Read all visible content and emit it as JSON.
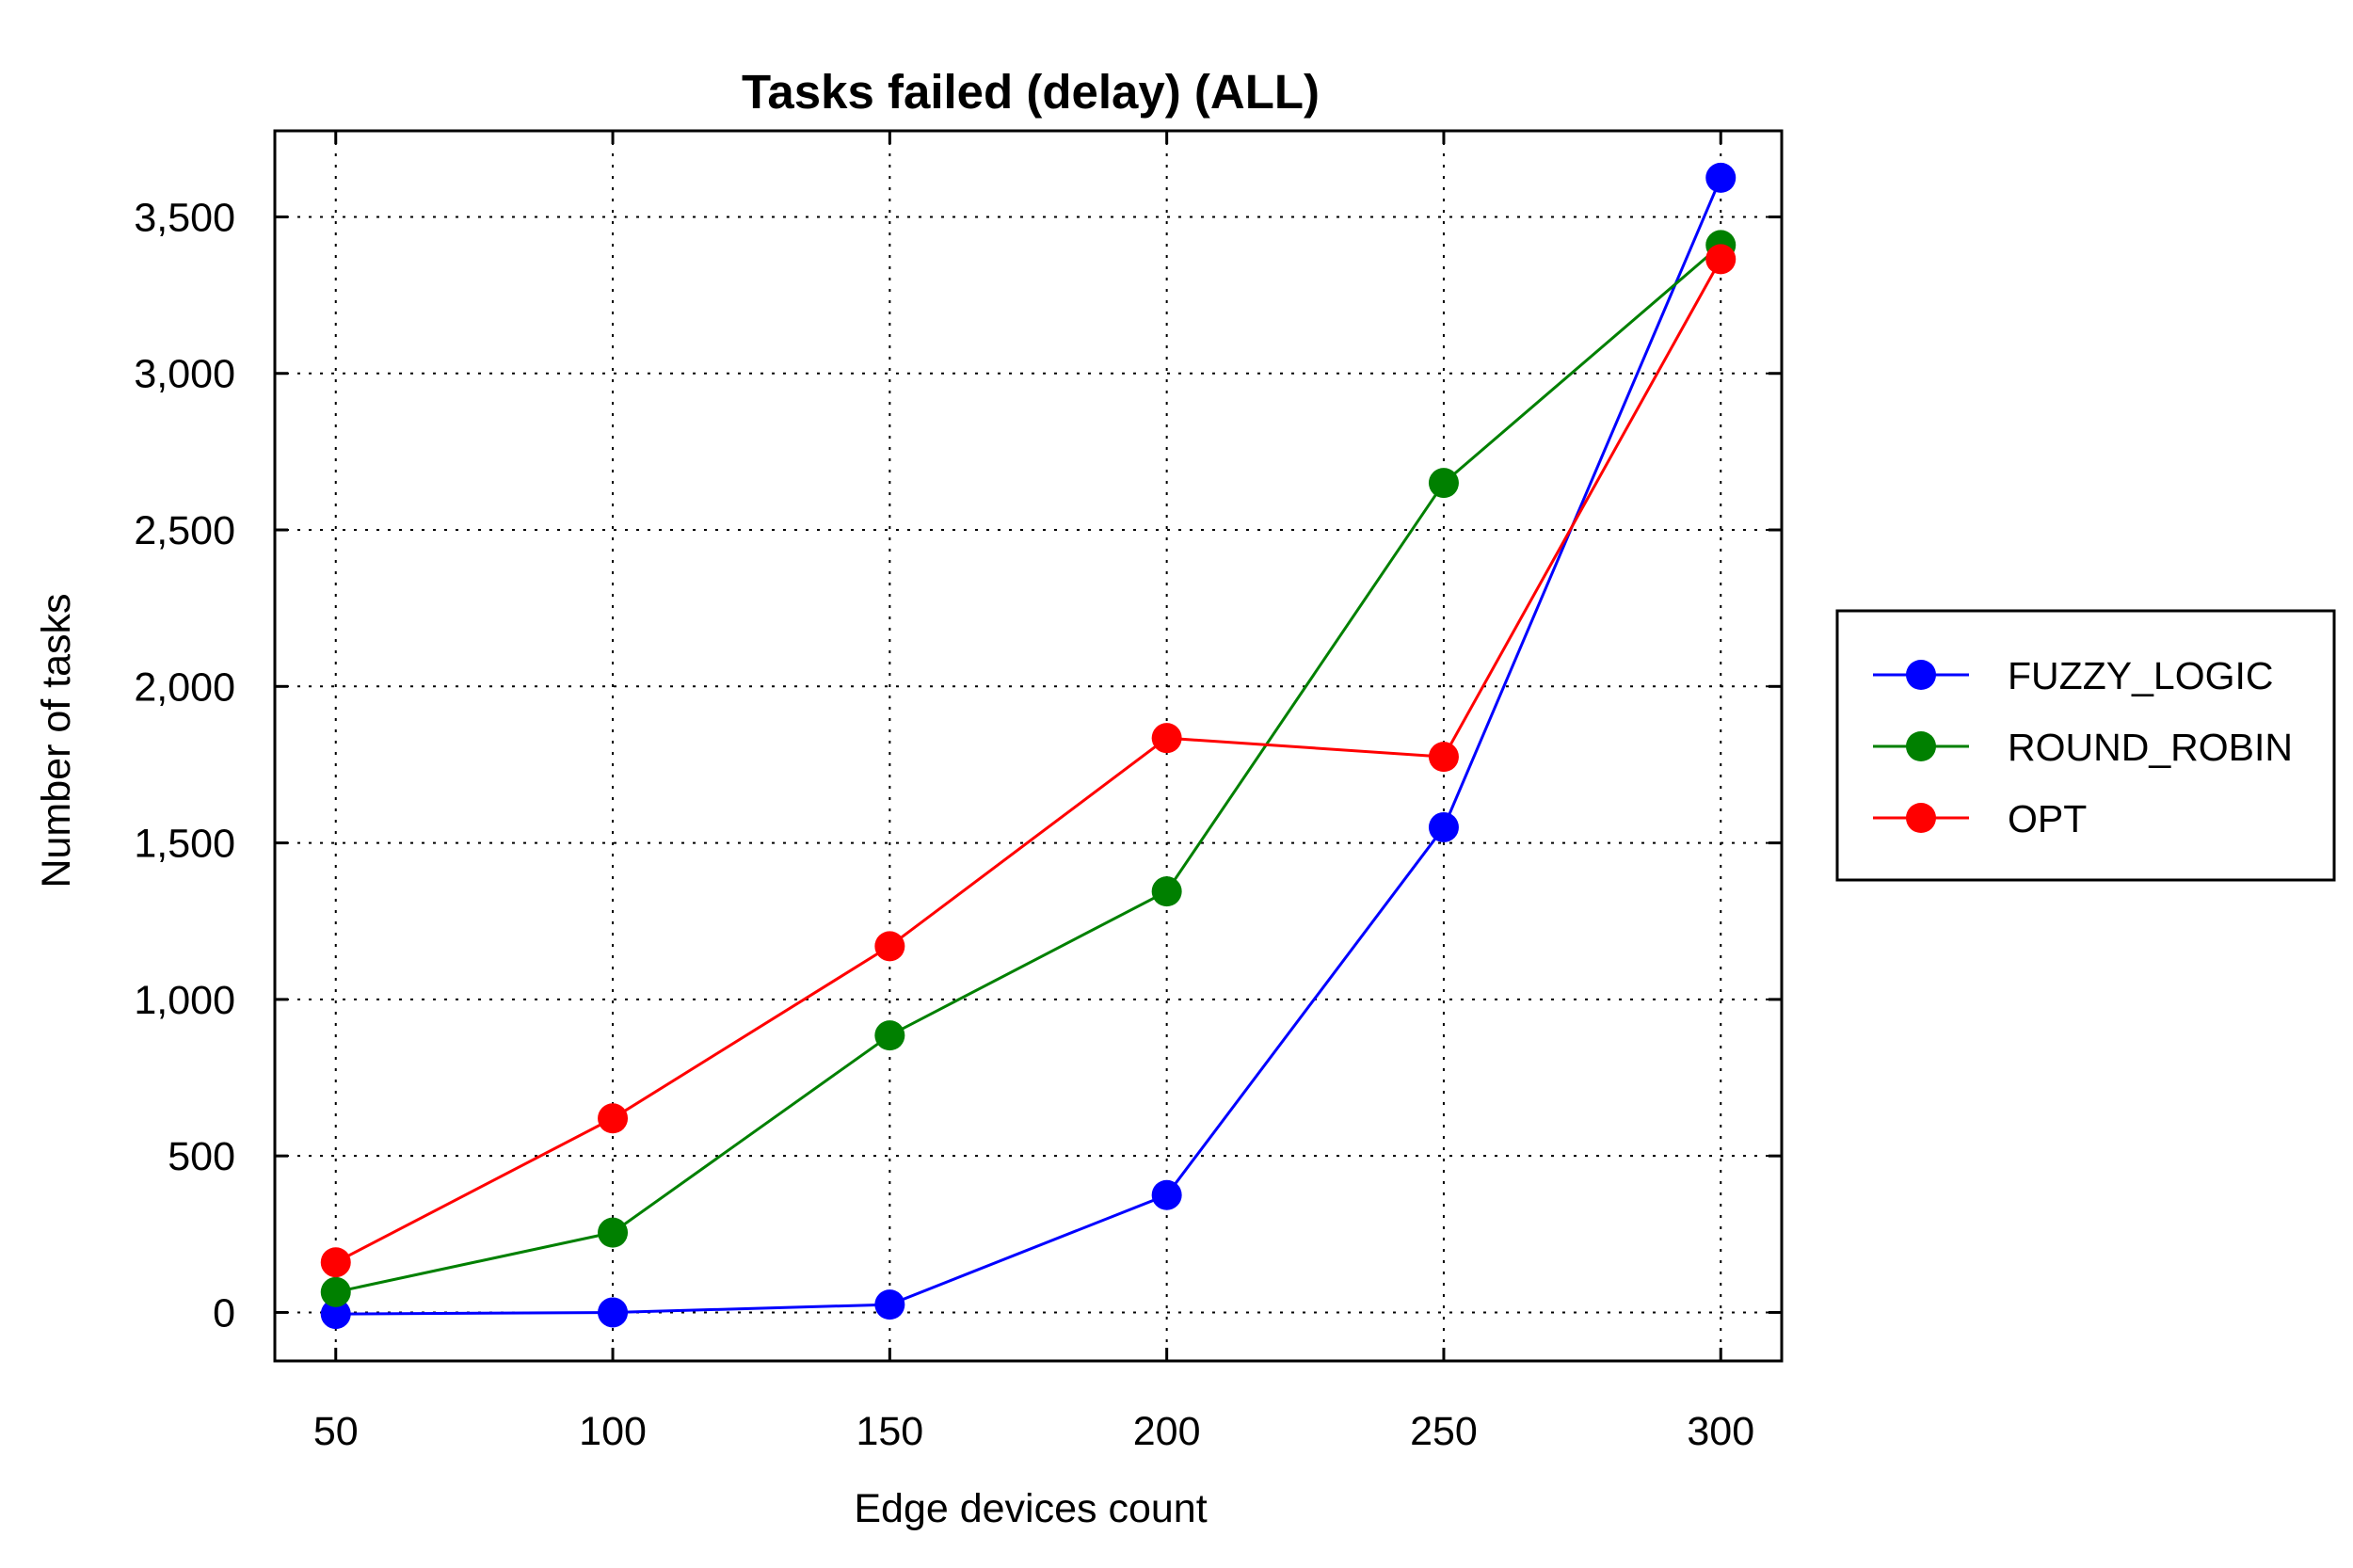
{
  "chart_data": {
    "type": "line",
    "title": "Tasks failed (delay) (ALL)",
    "xlabel": "Edge devices count",
    "ylabel": "Number of tasks",
    "x": [
      50,
      100,
      150,
      200,
      250,
      300
    ],
    "x_tick_labels": [
      "50",
      "100",
      "150",
      "200",
      "250",
      "300"
    ],
    "y_ticks": [
      0,
      500,
      1000,
      1500,
      2000,
      2500,
      3000,
      3500
    ],
    "y_tick_labels": [
      "0",
      "500",
      "1,000",
      "1,500",
      "2,000",
      "2,500",
      "3,000",
      "3,500"
    ],
    "xlim": [
      39,
      311
    ],
    "ylim": [
      -155,
      3775
    ],
    "grid": true,
    "legend_position": "right",
    "series": [
      {
        "name": "FUZZY_LOGIC",
        "color": "#0000ff",
        "values": [
          -5,
          0,
          25,
          375,
          1550,
          3625
        ]
      },
      {
        "name": " ROUND_ROBIN",
        "color": "#008000",
        "values": [
          65,
          255,
          885,
          1345,
          2650,
          3410
        ]
      },
      {
        "name": "OPT",
        "color": "#ff0000",
        "values": [
          160,
          620,
          1170,
          1835,
          1775,
          3365
        ]
      }
    ]
  }
}
